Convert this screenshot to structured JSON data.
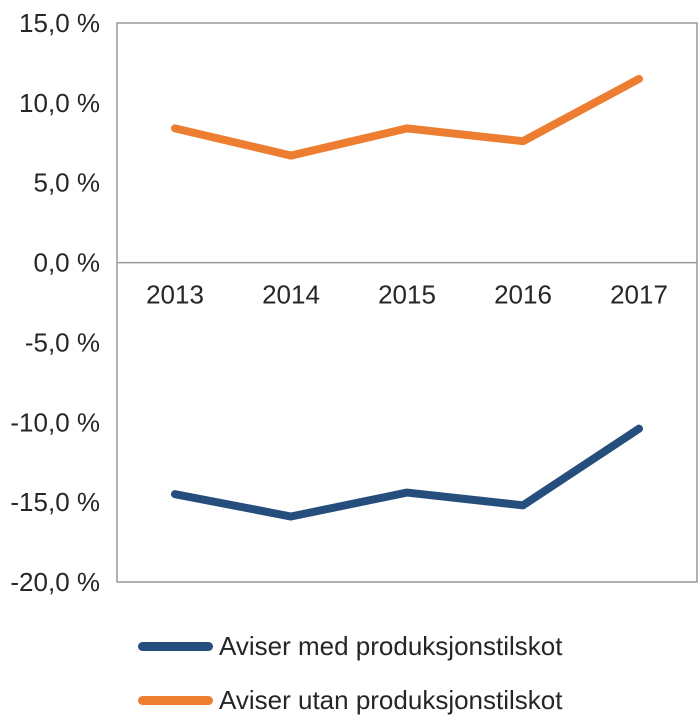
{
  "chart_data": {
    "type": "line",
    "categories": [
      "2013",
      "2014",
      "2015",
      "2016",
      "2017"
    ],
    "series": [
      {
        "name": "Aviser med produksjonstilskot",
        "color": "#254E7D",
        "values": [
          -14.5,
          -15.9,
          -14.4,
          -15.2,
          -10.4
        ]
      },
      {
        "name": "Aviser utan produksjonstilskot",
        "color": "#ED7D31",
        "values": [
          8.4,
          6.7,
          8.4,
          7.6,
          11.5
        ]
      }
    ],
    "y_ticks": [
      {
        "value": 15,
        "label": "15,0 %"
      },
      {
        "value": 10,
        "label": "10,0 %"
      },
      {
        "value": 5,
        "label": "5,0 %"
      },
      {
        "value": 0,
        "label": "0,0 %"
      },
      {
        "value": -5,
        "label": "-5,0 %"
      },
      {
        "value": -10,
        "label": "-10,0 %"
      },
      {
        "value": -15,
        "label": "-15,0 %"
      },
      {
        "value": -20,
        "label": "-20,0 %"
      }
    ],
    "ylim": [
      -20,
      15
    ],
    "xlabel": "",
    "ylabel": "",
    "title": "",
    "grid": "zero-line-only",
    "legend_position": "bottom",
    "axis_color": "#999999",
    "text_color": "#262626"
  }
}
